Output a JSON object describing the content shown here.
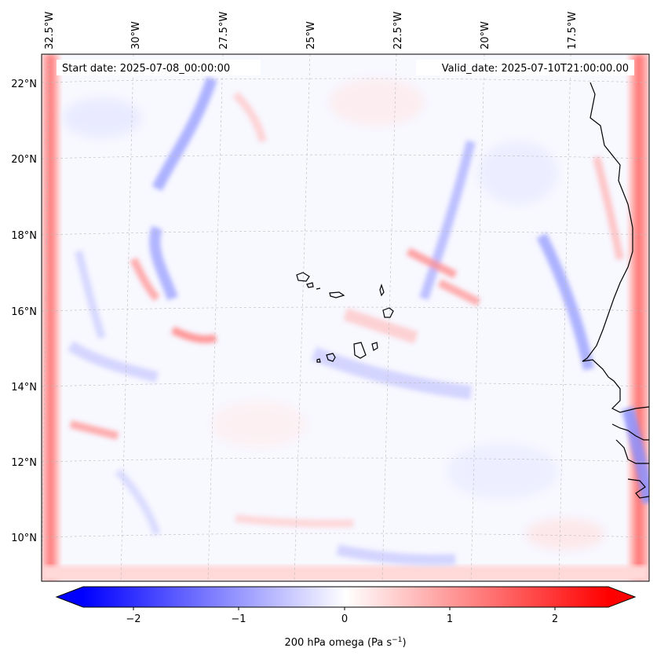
{
  "header": {
    "start_date": "Start date: 2025-07-08_00:00:00",
    "valid_date": "Valid_date: 2025-07-10T21:00:00.00"
  },
  "lon_labels": [
    "32.5°W",
    "30°W",
    "27.5°W",
    "25°W",
    "22.5°W",
    "20°W",
    "17.5°W"
  ],
  "lat_labels": [
    "22°N",
    "20°N",
    "18°N",
    "16°N",
    "14°N",
    "12°N",
    "10°N"
  ],
  "colorbar": {
    "ticks": [
      "−2",
      "−1",
      "0",
      "1",
      "2"
    ],
    "label": "200 hPa omega (Pa s",
    "label_sup": "−1",
    "label_close": ")",
    "min": -2.75,
    "max": 2.75
  },
  "colors": {
    "negative": "#0000ff",
    "neutral": "#ffffff",
    "positive": "#ff0000",
    "coast": "#000000",
    "grid": "#bbbbbb"
  }
}
